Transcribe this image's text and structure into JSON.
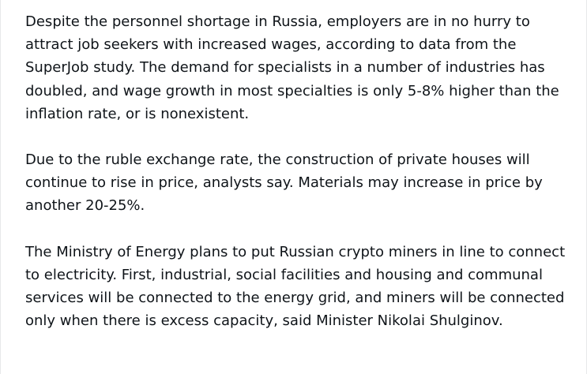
{
  "post": {
    "paragraphs": [
      "Despite the personnel shortage in Russia, employers are in no hurry to attract job seekers with increased wages, according to data from the SuperJob study. The demand for specialists in a number of industries has doubled, and wage growth in most specialties is only 5-8% higher than the inflation rate, or is nonexistent.",
      "Due to the ruble exchange rate, the construction of private houses will continue to rise in price, analysts say. Materials may increase in price by another 20-25%.",
      "The Ministry of Energy plans to put Russian crypto miners in line to connect to electricity. First, industrial, social facilities and housing and communal services will be connected to the energy grid, and miners will be connected only when there is excess capacity, said Minister Nikolai Shulginov."
    ]
  },
  "colors": {
    "text": "#0f1419",
    "background": "#ffffff"
  }
}
